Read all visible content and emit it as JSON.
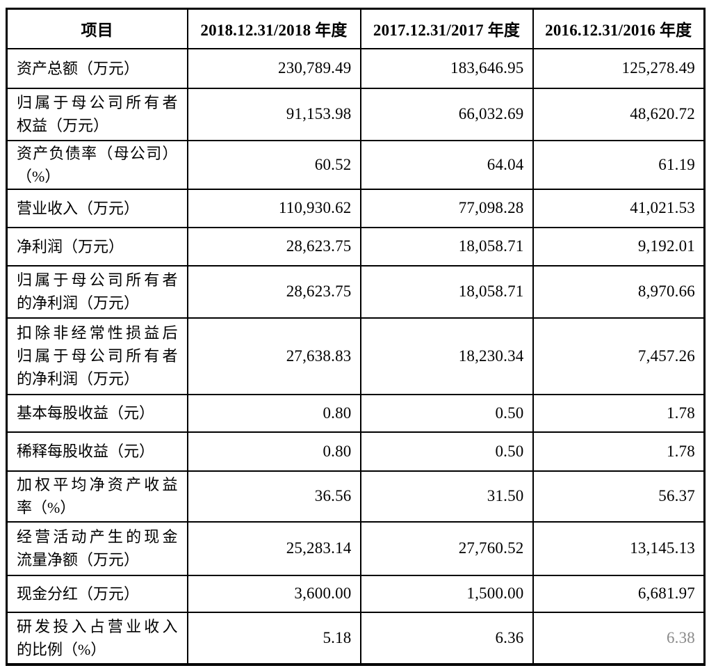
{
  "table": {
    "columns": [
      "项目",
      "2018.12.31/2018 年度",
      "2017.12.31/2017 年度",
      "2016.12.31/2016 年度"
    ],
    "muted_color": "#8a8a8a",
    "rows": [
      {
        "label_lines": [
          "资产总额（万元）"
        ],
        "values": [
          "230,789.49",
          "183,646.95",
          "125,278.49"
        ]
      },
      {
        "label_lines": [
          "归属于母公司所有者",
          "权益（万元）"
        ],
        "values": [
          "91,153.98",
          "66,032.69",
          "48,620.72"
        ]
      },
      {
        "label_lines": [
          "资产负债率（母公司）",
          "（%）"
        ],
        "values": [
          "60.52",
          "64.04",
          "61.19"
        ]
      },
      {
        "label_lines": [
          "营业收入（万元）"
        ],
        "values": [
          "110,930.62",
          "77,098.28",
          "41,021.53"
        ]
      },
      {
        "label_lines": [
          "净利润（万元）"
        ],
        "values": [
          "28,623.75",
          "18,058.71",
          "9,192.01"
        ]
      },
      {
        "label_lines": [
          "归属于母公司所有者",
          "的净利润（万元）"
        ],
        "values": [
          "28,623.75",
          "18,058.71",
          "8,970.66"
        ]
      },
      {
        "label_lines": [
          "扣除非经常性损益后",
          "归属于母公司所有者",
          "的净利润（万元）"
        ],
        "values": [
          "27,638.83",
          "18,230.34",
          "7,457.26"
        ]
      },
      {
        "label_lines": [
          "基本每股收益（元）"
        ],
        "values": [
          "0.80",
          "0.50",
          "1.78"
        ]
      },
      {
        "label_lines": [
          "稀释每股收益（元）"
        ],
        "values": [
          "0.80",
          "0.50",
          "1.78"
        ]
      },
      {
        "label_lines": [
          "加权平均净资产收益",
          "率（%）"
        ],
        "values": [
          "36.56",
          "31.50",
          "56.37"
        ]
      },
      {
        "label_lines": [
          "经营活动产生的现金",
          "流量净额（万元）"
        ],
        "values": [
          "25,283.14",
          "27,760.52",
          "13,145.13"
        ]
      },
      {
        "label_lines": [
          "现金分红（万元）"
        ],
        "values": [
          "3,600.00",
          "1,500.00",
          "6,681.97"
        ]
      },
      {
        "label_lines": [
          "研发投入占营业收入",
          "的比例（%）"
        ],
        "values": [
          "5.18",
          "6.36",
          "6.38"
        ],
        "muted_values": [
          2
        ]
      }
    ]
  }
}
